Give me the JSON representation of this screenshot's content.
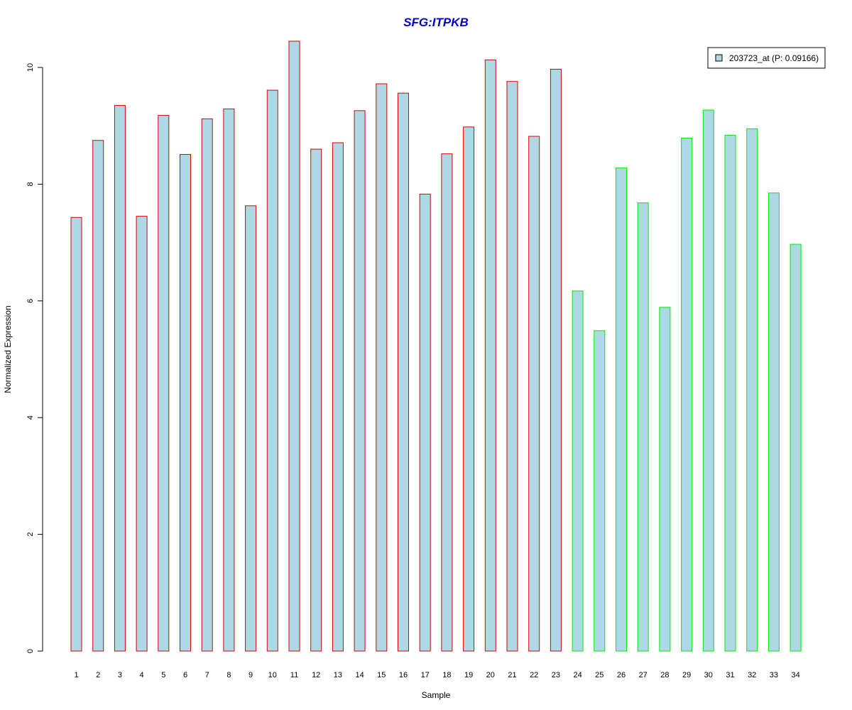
{
  "chart_data": {
    "type": "bar",
    "title": "SFG:ITPKB",
    "xlabel": "Sample",
    "ylabel": "Normalized Expression",
    "categories": [
      "1",
      "2",
      "3",
      "4",
      "5",
      "6",
      "7",
      "8",
      "9",
      "10",
      "11",
      "12",
      "13",
      "14",
      "15",
      "16",
      "17",
      "18",
      "19",
      "20",
      "21",
      "22",
      "23",
      "24",
      "25",
      "26",
      "27",
      "28",
      "29",
      "30",
      "31",
      "32",
      "33",
      "34"
    ],
    "series": [
      {
        "name": "203723_at (P: 0.09166)",
        "values": [
          7.43,
          8.75,
          9.35,
          7.45,
          9.18,
          8.51,
          9.12,
          9.29,
          7.63,
          9.61,
          10.45,
          8.6,
          8.71,
          9.26,
          9.72,
          9.56,
          7.83,
          8.52,
          8.98,
          10.13,
          9.76,
          8.82,
          9.97,
          6.17,
          5.49,
          8.28,
          7.68,
          5.89,
          8.79,
          9.27,
          8.84,
          8.95,
          7.85,
          6.97
        ]
      }
    ],
    "groups": [
      {
        "range": [
          1,
          23
        ],
        "border_color": "#dd0000"
      },
      {
        "range": [
          24,
          34
        ],
        "border_color": "#00ee00"
      }
    ],
    "bar_fill": "#add8e6",
    "title_color": "#0000cc",
    "ylim": [
      0,
      10.5
    ],
    "yticks": [
      0,
      2,
      4,
      6,
      8,
      10
    ],
    "legend": {
      "label": "203723_at (P: 0.09166)",
      "position": "top-right"
    }
  }
}
